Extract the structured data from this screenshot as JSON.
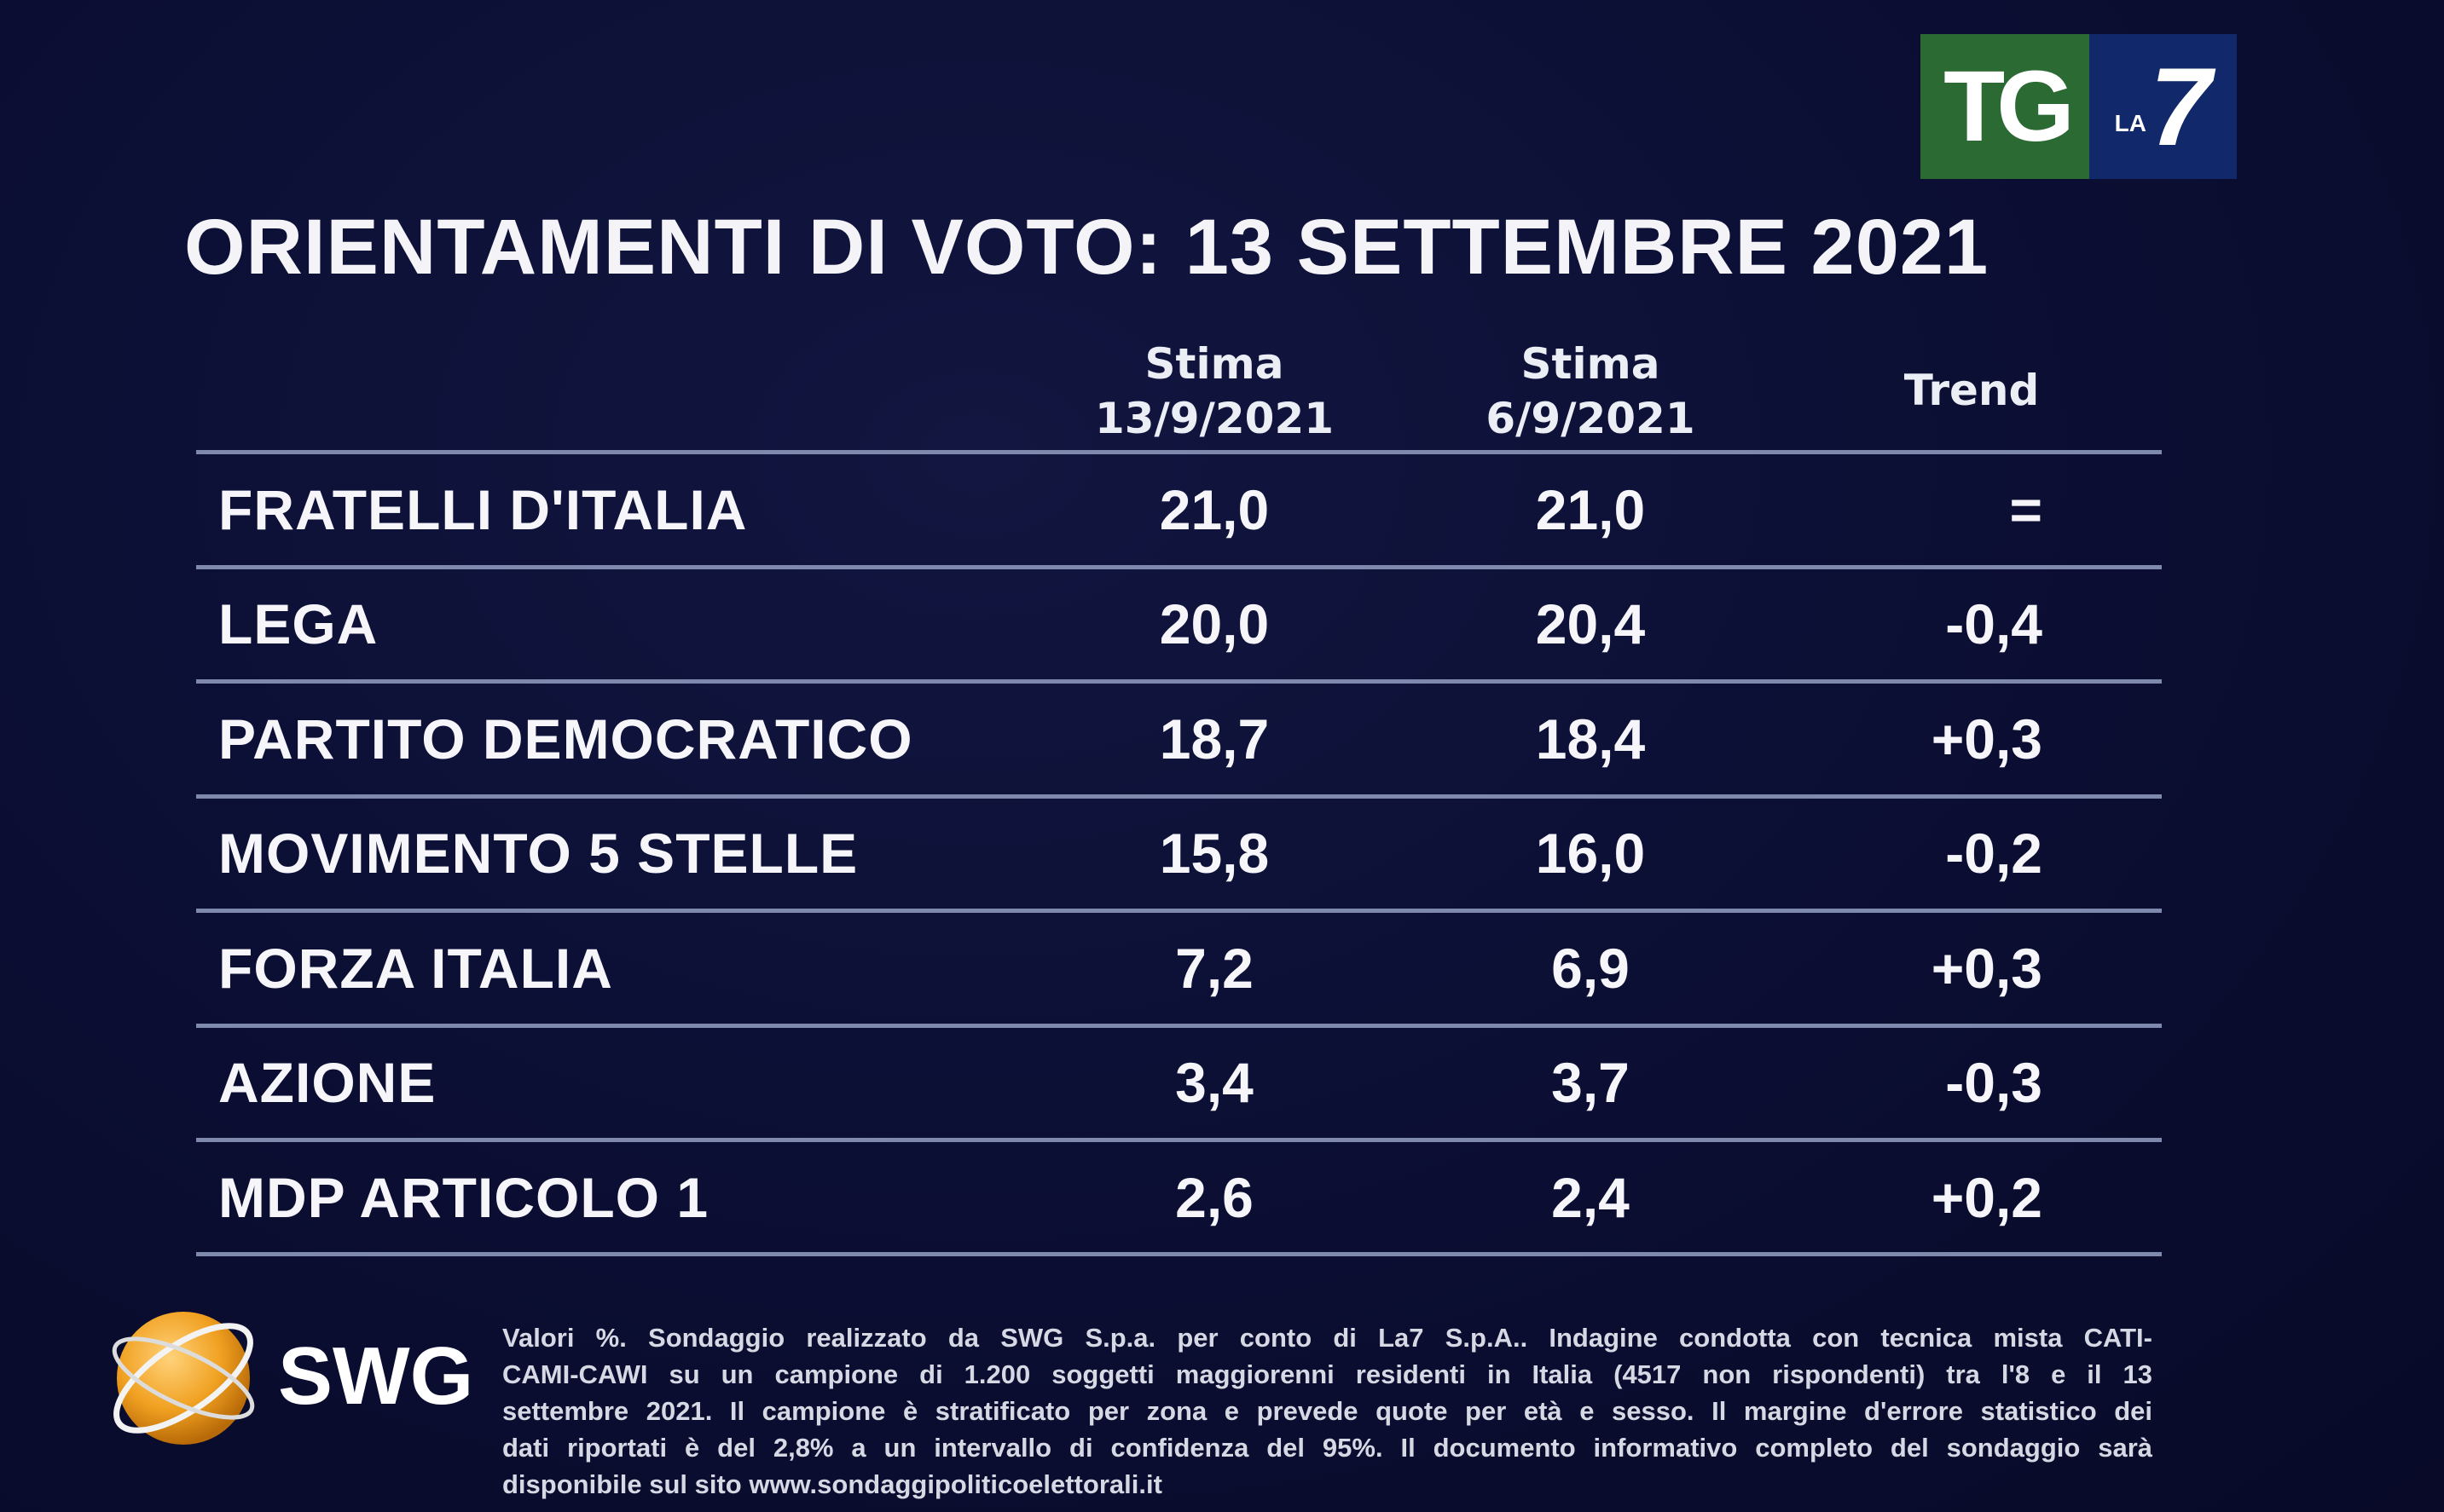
{
  "title": "ORIENTAMENTI DI VOTO: 13 SETTEMBRE 2021",
  "logo": {
    "tg": "TG",
    "la": "LA",
    "seven": "7",
    "brand_green": "#2c6a33",
    "brand_blue": "#11296a"
  },
  "headers": {
    "col_a": [
      "Stima",
      "13/9/2021"
    ],
    "col_b": [
      "Stima",
      "6/9/2021"
    ],
    "trend": "Trend"
  },
  "rows": [
    {
      "party": "FRATELLI D'ITALIA",
      "a": "21,0",
      "b": "21,0",
      "trend": "="
    },
    {
      "party": "LEGA",
      "a": "20,0",
      "b": "20,4",
      "trend": "-0,4"
    },
    {
      "party": "PARTITO DEMOCRATICO",
      "a": "18,7",
      "b": "18,4",
      "trend": "+0,3"
    },
    {
      "party": "MOVIMENTO 5 STELLE",
      "a": "15,8",
      "b": "16,0",
      "trend": "-0,2"
    },
    {
      "party": "FORZA ITALIA",
      "a": "7,2",
      "b": "6,9",
      "trend": "+0,3"
    },
    {
      "party": "AZIONE",
      "a": "3,4",
      "b": "3,7",
      "trend": "-0,3"
    },
    {
      "party": "MDP ARTICOLO 1",
      "a": "2,6",
      "b": "2,4",
      "trend": "+0,2"
    }
  ],
  "swg": {
    "name": "SWG",
    "icon": "globe-icon"
  },
  "footer_lines": [
    "Valori %. Sondaggio realizzato da SWG S.p.a. per conto di La7 S.p.A.. Indagine condotta con tecnica mista CATI-",
    "CAMI-CAWI su un campione di 1.200 soggetti maggiorenni residenti in Italia (4517 non rispondenti) tra l'8 e il 13",
    "settembre 2021. Il campione è stratificato per zona e prevede quote per età e sesso. Il margine d'errore statistico dei",
    "dati riportati è del 2,8% a un intervallo di confidenza del 95%. Il documento informativo completo del sondaggio sarà",
    "disponibile sul sito www.sondaggipoliticoelettorali.it"
  ]
}
